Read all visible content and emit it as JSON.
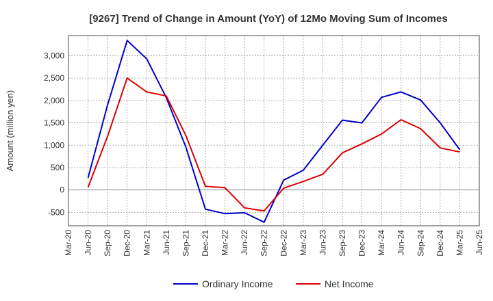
{
  "chart_data": {
    "type": "line",
    "title": "[9267]  Trend of Change in Amount (YoY) of 12Mo Moving Sum of Incomes",
    "ylabel": "Amount (million yen)",
    "xlabel": "",
    "ylim": [
      -800,
      3450
    ],
    "yticks": [
      -500,
      0,
      500,
      1000,
      1500,
      2000,
      2500,
      3000
    ],
    "ytick_labels": [
      "-500",
      "0",
      "500",
      "1,000",
      "1,500",
      "2,000",
      "2,500",
      "3,000"
    ],
    "x_tick_labels": [
      "Mar-20",
      "Jun-20",
      "Sep-20",
      "Dec-20",
      "Mar-21",
      "Jun-21",
      "Sep-21",
      "Dec-21",
      "Mar-22",
      "Jun-22",
      "Sep-22",
      "Dec-22",
      "Mar-23",
      "Jun-23",
      "Sep-23",
      "Dec-23",
      "Mar-24",
      "Jun-24",
      "Sep-24",
      "Dec-24",
      "Mar-25",
      "Jun-25"
    ],
    "categories": [
      "Jun-20",
      "Sep-20",
      "Dec-20",
      "Mar-21",
      "Jun-21",
      "Sep-21",
      "Dec-21",
      "Mar-22",
      "Jun-22",
      "Sep-22",
      "Dec-22",
      "Mar-23",
      "Jun-23",
      "Sep-23",
      "Dec-23",
      "Mar-24",
      "Jun-24",
      "Sep-24",
      "Dec-24",
      "Mar-25"
    ],
    "series": [
      {
        "name": "Ordinary Income",
        "color": "#0000cc",
        "values": [
          270,
          1900,
          3340,
          2930,
          2060,
          960,
          -430,
          -530,
          -510,
          -720,
          220,
          440,
          1000,
          1560,
          1500,
          2070,
          2190,
          2010,
          1500,
          900
        ]
      },
      {
        "name": "Net Income",
        "color": "#dd0000",
        "values": [
          60,
          1200,
          2500,
          2190,
          2100,
          1220,
          80,
          50,
          -400,
          -470,
          40,
          190,
          350,
          830,
          1030,
          1250,
          1570,
          1370,
          940,
          850
        ]
      }
    ],
    "grid": true,
    "legend_position": "bottom"
  }
}
